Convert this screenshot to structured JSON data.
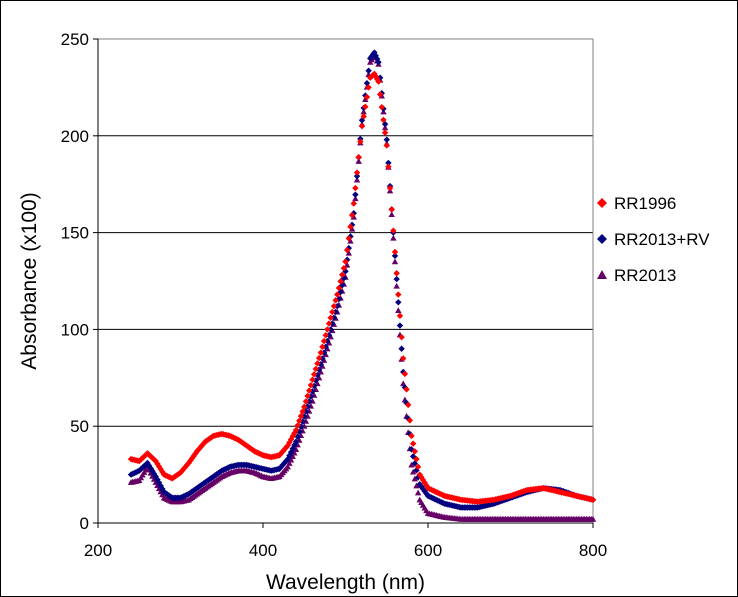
{
  "chart_data": {
    "type": "scatter",
    "title": "",
    "xlabel": "Wavelength (nm)",
    "ylabel": "Absorbance (x100)",
    "xlim": [
      200,
      800
    ],
    "ylim": [
      0,
      250
    ],
    "x_ticks": [
      "200",
      "400",
      "600",
      "800"
    ],
    "y_ticks": [
      "0",
      "50",
      "100",
      "150",
      "200",
      "250"
    ],
    "grid": "horizontal",
    "legend_position": "right",
    "series": [
      {
        "name": "RR1996",
        "color": "#ff0000",
        "marker": "diamond",
        "points": [
          [
            240,
            33
          ],
          [
            250,
            32
          ],
          [
            260,
            36
          ],
          [
            270,
            32
          ],
          [
            280,
            25
          ],
          [
            290,
            23
          ],
          [
            300,
            26
          ],
          [
            310,
            31
          ],
          [
            320,
            37
          ],
          [
            330,
            42
          ],
          [
            340,
            45
          ],
          [
            350,
            46
          ],
          [
            360,
            45
          ],
          [
            370,
            43
          ],
          [
            380,
            40
          ],
          [
            390,
            37
          ],
          [
            400,
            35
          ],
          [
            410,
            34
          ],
          [
            420,
            35
          ],
          [
            430,
            40
          ],
          [
            440,
            48
          ],
          [
            450,
            60
          ],
          [
            460,
            74
          ],
          [
            470,
            88
          ],
          [
            480,
            103
          ],
          [
            490,
            118
          ],
          [
            500,
            135
          ],
          [
            510,
            165
          ],
          [
            520,
            205
          ],
          [
            530,
            230
          ],
          [
            535,
            232
          ],
          [
            540,
            228
          ],
          [
            550,
            195
          ],
          [
            560,
            140
          ],
          [
            570,
            85
          ],
          [
            580,
            45
          ],
          [
            590,
            25
          ],
          [
            600,
            18
          ],
          [
            620,
            14
          ],
          [
            640,
            12
          ],
          [
            660,
            11
          ],
          [
            680,
            12
          ],
          [
            700,
            14
          ],
          [
            720,
            17
          ],
          [
            740,
            18
          ],
          [
            760,
            16
          ],
          [
            780,
            14
          ],
          [
            800,
            12
          ]
        ]
      },
      {
        "name": "RR2013+RV",
        "color": "#000080",
        "marker": "diamond",
        "points": [
          [
            240,
            25
          ],
          [
            250,
            27
          ],
          [
            260,
            31
          ],
          [
            270,
            24
          ],
          [
            280,
            16
          ],
          [
            290,
            13
          ],
          [
            300,
            13
          ],
          [
            310,
            15
          ],
          [
            320,
            18
          ],
          [
            330,
            21
          ],
          [
            340,
            24
          ],
          [
            350,
            27
          ],
          [
            360,
            29
          ],
          [
            370,
            30
          ],
          [
            380,
            30
          ],
          [
            390,
            29
          ],
          [
            400,
            28
          ],
          [
            410,
            27
          ],
          [
            420,
            28
          ],
          [
            430,
            33
          ],
          [
            440,
            42
          ],
          [
            450,
            55
          ],
          [
            460,
            68
          ],
          [
            470,
            82
          ],
          [
            480,
            97
          ],
          [
            490,
            112
          ],
          [
            500,
            130
          ],
          [
            510,
            160
          ],
          [
            520,
            208
          ],
          [
            530,
            240
          ],
          [
            535,
            243
          ],
          [
            540,
            238
          ],
          [
            550,
            198
          ],
          [
            560,
            138
          ],
          [
            570,
            78
          ],
          [
            580,
            38
          ],
          [
            590,
            20
          ],
          [
            600,
            14
          ],
          [
            620,
            10
          ],
          [
            640,
            8
          ],
          [
            660,
            8
          ],
          [
            680,
            10
          ],
          [
            700,
            13
          ],
          [
            720,
            16
          ],
          [
            740,
            18
          ],
          [
            760,
            17
          ],
          [
            780,
            14
          ],
          [
            800,
            12
          ]
        ]
      },
      {
        "name": "RR2013",
        "color": "#660066",
        "marker": "triangle",
        "points": [
          [
            240,
            21
          ],
          [
            250,
            22
          ],
          [
            260,
            29
          ],
          [
            270,
            21
          ],
          [
            280,
            13
          ],
          [
            290,
            11
          ],
          [
            300,
            11
          ],
          [
            310,
            12
          ],
          [
            320,
            15
          ],
          [
            330,
            18
          ],
          [
            340,
            21
          ],
          [
            350,
            24
          ],
          [
            360,
            26
          ],
          [
            370,
            27
          ],
          [
            380,
            27
          ],
          [
            390,
            26
          ],
          [
            400,
            24
          ],
          [
            410,
            23
          ],
          [
            420,
            24
          ],
          [
            430,
            29
          ],
          [
            440,
            38
          ],
          [
            450,
            50
          ],
          [
            460,
            63
          ],
          [
            470,
            78
          ],
          [
            480,
            93
          ],
          [
            490,
            109
          ],
          [
            500,
            127
          ],
          [
            510,
            158
          ],
          [
            520,
            206
          ],
          [
            530,
            238
          ],
          [
            535,
            242
          ],
          [
            540,
            237
          ],
          [
            550,
            196
          ],
          [
            560,
            135
          ],
          [
            570,
            72
          ],
          [
            580,
            30
          ],
          [
            590,
            12
          ],
          [
            600,
            5
          ],
          [
            620,
            3
          ],
          [
            640,
            2
          ],
          [
            660,
            2
          ],
          [
            680,
            2
          ],
          [
            700,
            2
          ],
          [
            720,
            2
          ],
          [
            740,
            2
          ],
          [
            760,
            2
          ],
          [
            780,
            2
          ],
          [
            800,
            2
          ]
        ]
      }
    ]
  }
}
